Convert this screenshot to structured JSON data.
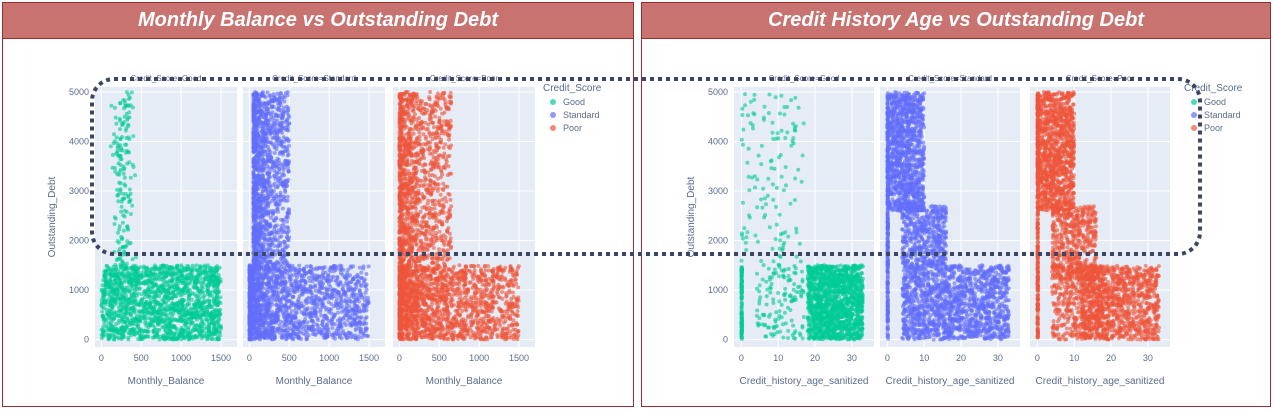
{
  "colors": {
    "Good": "#00cc96",
    "Standard": "#636efa",
    "Poor": "#ef553b",
    "plot_bg": "#e5ecf6",
    "banner_bg": "#c87370",
    "border": "#9a2e2e",
    "highlight": "#3b4566"
  },
  "chart_data": [
    {
      "type": "scatter",
      "title": "Monthly Balance vs Outstanding Debt",
      "facet_titles": [
        "Credit_Score=Good",
        "Credit_Score=Standard",
        "Credit_Score=Poor"
      ],
      "categories": [
        "Good",
        "Standard",
        "Poor"
      ],
      "xlabel": "Monthly_Balance",
      "ylabel": "Outstanding_Debt",
      "xticks": [
        "0",
        "500",
        "1000",
        "1500"
      ],
      "yticks": [
        "0",
        "1000",
        "2000",
        "3000",
        "4000",
        "5000"
      ],
      "xlim": [
        -80,
        1700
      ],
      "ylim": [
        -150,
        5100
      ],
      "legend_title": "Credit_Score",
      "legend": [
        "Good",
        "Standard",
        "Poor"
      ],
      "legend_position": "right",
      "series": [
        {
          "name": "Good",
          "clusters": [
            {
              "x": [
                0,
                1500
              ],
              "y": [
                0,
                1500
              ],
              "n": 1700,
              "shape": "rect"
            },
            {
              "x": [
                100,
                450
              ],
              "y": [
                1500,
                5000
              ],
              "n": 170,
              "shape": "narrow"
            }
          ]
        },
        {
          "name": "Standard",
          "clusters": [
            {
              "x": [
                0,
                1500
              ],
              "y": [
                0,
                1500
              ],
              "n": 1700,
              "shape": "taper"
            },
            {
              "x": [
                50,
                500
              ],
              "y": [
                1500,
                5000
              ],
              "n": 1300,
              "shape": "taper"
            }
          ]
        },
        {
          "name": "Poor",
          "clusters": [
            {
              "x": [
                0,
                1500
              ],
              "y": [
                0,
                1500
              ],
              "n": 1700,
              "shape": "taper"
            },
            {
              "x": [
                0,
                650
              ],
              "y": [
                1500,
                5000
              ],
              "n": 1300,
              "shape": "taper"
            }
          ]
        }
      ]
    },
    {
      "type": "scatter",
      "title": "Credit History Age vs Outstanding Debt",
      "facet_titles": [
        "Credit_Score=Good",
        "Credit_Score=Standard",
        "Credit_Score=Poor"
      ],
      "categories": [
        "Good",
        "Standard",
        "Poor"
      ],
      "xlabel": "Credit_history_age_sanitized",
      "ylabel": "Outstanding_Debt",
      "xticks": [
        "0",
        "10",
        "20",
        "30"
      ],
      "yticks": [
        "0",
        "1000",
        "2000",
        "3000",
        "4000",
        "5000"
      ],
      "xlim": [
        -2,
        36
      ],
      "ylim": [
        -150,
        5100
      ],
      "legend_title": "Credit_Score",
      "legend": [
        "Good",
        "Standard",
        "Poor"
      ],
      "legend_position": "right",
      "series": [
        {
          "name": "Good",
          "clusters": [
            {
              "x": [
                0,
                0.2
              ],
              "y": [
                0,
                1500
              ],
              "n": 120,
              "shape": "rect"
            },
            {
              "x": [
                18,
                33
              ],
              "y": [
                0,
                1500
              ],
              "n": 1400,
              "shape": "rect"
            },
            {
              "x": [
                4,
                17
              ],
              "y": [
                0,
                1500
              ],
              "n": 130,
              "shape": "rect"
            },
            {
              "x": [
                0,
                17
              ],
              "y": [
                1500,
                5000
              ],
              "n": 130,
              "shape": "rect"
            }
          ]
        },
        {
          "name": "Standard",
          "clusters": [
            {
              "x": [
                0,
                0.2
              ],
              "y": [
                0,
                5000
              ],
              "n": 300,
              "shape": "rect"
            },
            {
              "x": [
                0,
                10
              ],
              "y": [
                2600,
                5000
              ],
              "n": 1100,
              "shape": "rect"
            },
            {
              "x": [
                4,
                16
              ],
              "y": [
                1500,
                2700
              ],
              "n": 500,
              "shape": "rect"
            },
            {
              "x": [
                4,
                33
              ],
              "y": [
                0,
                1500
              ],
              "n": 1500,
              "shape": "rect"
            }
          ]
        },
        {
          "name": "Poor",
          "clusters": [
            {
              "x": [
                0,
                0.2
              ],
              "y": [
                0,
                5000
              ],
              "n": 300,
              "shape": "rect"
            },
            {
              "x": [
                0,
                10
              ],
              "y": [
                2600,
                5000
              ],
              "n": 1100,
              "shape": "rect"
            },
            {
              "x": [
                4,
                16
              ],
              "y": [
                1200,
                2700
              ],
              "n": 500,
              "shape": "rect"
            },
            {
              "x": [
                12,
                33
              ],
              "y": [
                0,
                1500
              ],
              "n": 1000,
              "shape": "rect"
            },
            {
              "x": [
                4,
                18
              ],
              "y": [
                0,
                1500
              ],
              "n": 400,
              "shape": "rect"
            }
          ]
        }
      ]
    }
  ]
}
